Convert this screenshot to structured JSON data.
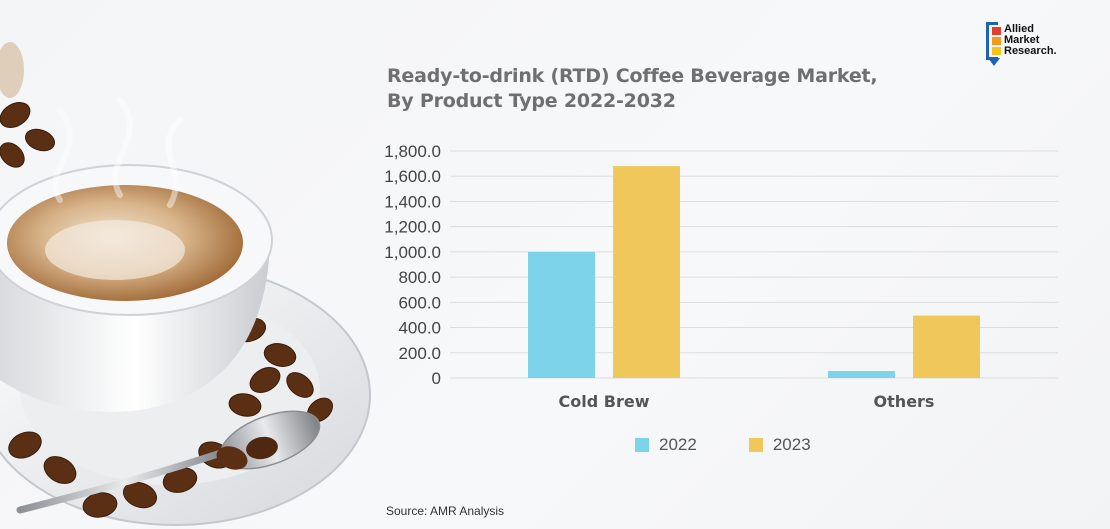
{
  "title_lines": [
    "Ready-to-drink (RTD) Coffee Beverage Market,",
    "By Product Type 2022-2032"
  ],
  "logo": {
    "lines": [
      "Allied",
      "Market",
      "Research."
    ]
  },
  "source": "Source:  AMR Analysis",
  "colors": {
    "2022": "#7dd3ea",
    "2023": "#f0c75a",
    "grid": "#dddddd",
    "text": "#444444"
  },
  "chart_data": {
    "type": "bar",
    "title": "Ready-to-drink (RTD) Coffee Beverage Market, By Product Type 2022-2032",
    "categories": [
      "Cold Brew",
      "Others"
    ],
    "series": [
      {
        "name": "2022",
        "values": [
          1000,
          55
        ]
      },
      {
        "name": "2023",
        "values": [
          1680,
          495
        ]
      }
    ],
    "yticks": [
      "0",
      "200.0",
      "400.0",
      "600.0",
      "800.0",
      "1,000.0",
      "1,200.0",
      "1,400.0",
      "1,600.0",
      "1,800.0"
    ],
    "ylim": [
      0,
      1800
    ],
    "xlabel": "",
    "ylabel": "",
    "legend": "bottom",
    "grid": true
  }
}
